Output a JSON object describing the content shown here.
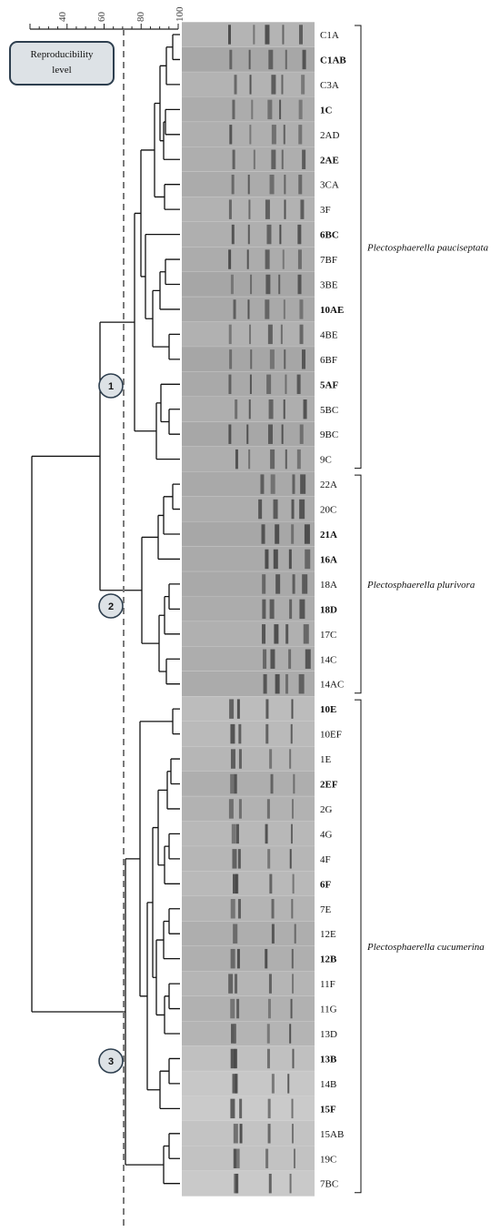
{
  "legend_label": "Reproducibility level",
  "scale": {
    "ticks": [
      "40",
      "60",
      "80",
      "100"
    ]
  },
  "clusters": [
    {
      "node": "1",
      "species": "Plectosphaerella pauciseptata"
    },
    {
      "node": "2",
      "species": "Plectosphaerella plurivora"
    },
    {
      "node": "3",
      "species": "Plectosphaerella cucumerina"
    }
  ],
  "strains": [
    {
      "label": "C1A",
      "bold": false,
      "cluster": 0
    },
    {
      "label": "C1AB",
      "bold": true,
      "cluster": 0
    },
    {
      "label": "C3A",
      "bold": false,
      "cluster": 0
    },
    {
      "label": "1C",
      "bold": true,
      "cluster": 0
    },
    {
      "label": "2AD",
      "bold": false,
      "cluster": 0
    },
    {
      "label": "2AE",
      "bold": true,
      "cluster": 0
    },
    {
      "label": "3CA",
      "bold": false,
      "cluster": 0
    },
    {
      "label": "3F",
      "bold": false,
      "cluster": 0
    },
    {
      "label": "6BC",
      "bold": true,
      "cluster": 0
    },
    {
      "label": "7BF",
      "bold": false,
      "cluster": 0
    },
    {
      "label": "3BE",
      "bold": false,
      "cluster": 0
    },
    {
      "label": "10AE",
      "bold": true,
      "cluster": 0
    },
    {
      "label": "4BE",
      "bold": false,
      "cluster": 0
    },
    {
      "label": "6BF",
      "bold": false,
      "cluster": 0
    },
    {
      "label": "5AF",
      "bold": true,
      "cluster": 0
    },
    {
      "label": "5BC",
      "bold": false,
      "cluster": 0
    },
    {
      "label": "9BC",
      "bold": false,
      "cluster": 0
    },
    {
      "label": "9C",
      "bold": false,
      "cluster": 0
    },
    {
      "label": "22A",
      "bold": false,
      "cluster": 1
    },
    {
      "label": "20C",
      "bold": false,
      "cluster": 1
    },
    {
      "label": "21A",
      "bold": true,
      "cluster": 1
    },
    {
      "label": "16A",
      "bold": true,
      "cluster": 1
    },
    {
      "label": "18A",
      "bold": false,
      "cluster": 1
    },
    {
      "label": "18D",
      "bold": true,
      "cluster": 1
    },
    {
      "label": "17C",
      "bold": false,
      "cluster": 1
    },
    {
      "label": "14C",
      "bold": false,
      "cluster": 1
    },
    {
      "label": "14AC",
      "bold": false,
      "cluster": 1
    },
    {
      "label": "10E",
      "bold": true,
      "cluster": 2
    },
    {
      "label": "10EF",
      "bold": false,
      "cluster": 2
    },
    {
      "label": "1E",
      "bold": false,
      "cluster": 2
    },
    {
      "label": "2EF",
      "bold": true,
      "cluster": 2
    },
    {
      "label": "2G",
      "bold": false,
      "cluster": 2
    },
    {
      "label": "4G",
      "bold": false,
      "cluster": 2
    },
    {
      "label": "4F",
      "bold": false,
      "cluster": 2
    },
    {
      "label": "6F",
      "bold": true,
      "cluster": 2
    },
    {
      "label": "7E",
      "bold": false,
      "cluster": 2
    },
    {
      "label": "12E",
      "bold": false,
      "cluster": 2
    },
    {
      "label": "12B",
      "bold": true,
      "cluster": 2
    },
    {
      "label": "11F",
      "bold": false,
      "cluster": 2
    },
    {
      "label": "11G",
      "bold": false,
      "cluster": 2
    },
    {
      "label": "13D",
      "bold": false,
      "cluster": 2
    },
    {
      "label": "13B",
      "bold": true,
      "cluster": 2
    },
    {
      "label": "14B",
      "bold": false,
      "cluster": 2
    },
    {
      "label": "15F",
      "bold": true,
      "cluster": 2
    },
    {
      "label": "15AB",
      "bold": false,
      "cluster": 2
    },
    {
      "label": "19C",
      "bold": false,
      "cluster": 2
    },
    {
      "label": "7BC",
      "bold": false,
      "cluster": 2
    }
  ],
  "colors": {
    "lines": "#111111",
    "reproducibility_line": "#7a7a7a",
    "gel_dark": "#9a9a9a",
    "gel_light": "#c8c8c8",
    "node_fill": "#dde2e6"
  }
}
